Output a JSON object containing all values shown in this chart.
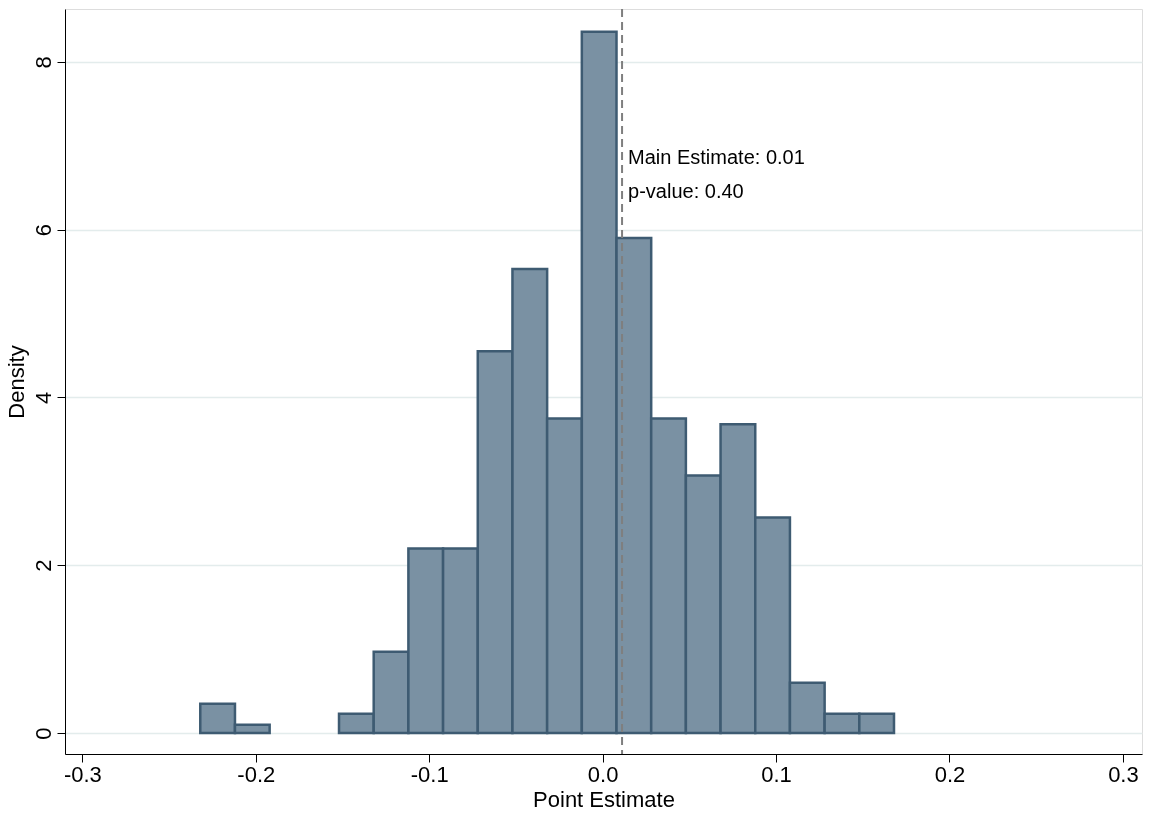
{
  "chart_data": {
    "type": "histogram",
    "xlabel": "Point Estimate",
    "ylabel": "Density",
    "bins": [
      -0.232,
      -0.212,
      -0.192,
      -0.172,
      -0.152,
      -0.132,
      -0.112,
      -0.092,
      -0.072,
      -0.052,
      -0.032,
      -0.012,
      0.008,
      0.028,
      0.048,
      0.068,
      0.088,
      0.108,
      0.128,
      0.148,
      0.168
    ],
    "values": [
      0.35,
      0.1,
      0,
      0,
      0.23,
      0.97,
      2.2,
      2.2,
      4.55,
      5.53,
      3.75,
      8.36,
      5.9,
      3.75,
      3.07,
      3.68,
      2.57,
      0.6,
      0.23,
      0.23
    ],
    "color": "#7a91a3",
    "xlim": [
      -0.31,
      0.311
    ],
    "ylim": [
      -0.25,
      8.63
    ],
    "xticks": [
      -0.3,
      -0.2,
      -0.1,
      {
        "value": 0,
        "label": "0.0"
      },
      0.1,
      0.2,
      0.3
    ],
    "yticks": [
      0,
      2,
      4,
      6,
      8
    ],
    "grid": "y",
    "ref_lines": [
      {
        "axis": "x",
        "value": 0.0112,
        "color": "#7f7f7f",
        "line_style": "dashed"
      }
    ],
    "annotations": [
      {
        "text": "Main Estimate: 0.01",
        "x": 0.0112,
        "y": 6.85
      },
      {
        "text": "p-value: 0.40",
        "x": 0.0112,
        "y": 6.45
      }
    ]
  }
}
